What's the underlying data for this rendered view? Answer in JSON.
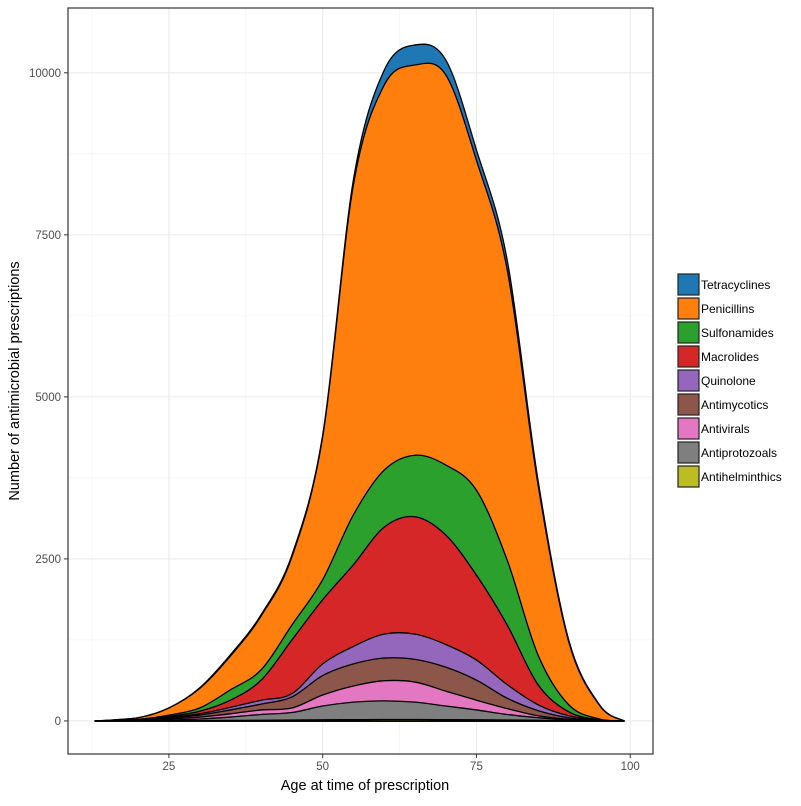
{
  "chart_data": {
    "type": "area",
    "stacked": true,
    "title": "",
    "xlabel": "Age at time of prescription",
    "ylabel": "Number of antimicrobial prescriptions",
    "xlim": [
      8.6,
      103.7
    ],
    "ylim": [
      -510,
      11000
    ],
    "xticks": [
      25,
      50,
      75,
      100
    ],
    "yticks": [
      0,
      2500,
      5000,
      7500,
      10000
    ],
    "grid": true,
    "legend_position": "right",
    "x": [
      13,
      20,
      25,
      30,
      35,
      40,
      45,
      50,
      55,
      60,
      65,
      70,
      75,
      80,
      85,
      90,
      95,
      99
    ],
    "series": [
      {
        "name": "Antihelminthics",
        "color": "#bcbd22",
        "values": [
          0,
          0,
          2,
          5,
          8,
          10,
          15,
          18,
          20,
          22,
          22,
          20,
          18,
          15,
          10,
          5,
          2,
          0
        ]
      },
      {
        "name": "Antiprotozoals",
        "color": "#7f7f7f",
        "values": [
          0,
          5,
          13,
          25,
          52,
          90,
          115,
          212,
          270,
          288,
          268,
          210,
          152,
          85,
          40,
          10,
          1,
          0
        ]
      },
      {
        "name": "Antivirals",
        "color": "#e377c2",
        "values": [
          0,
          5,
          15,
          30,
          50,
          70,
          70,
          170,
          250,
          310,
          310,
          230,
          150,
          90,
          30,
          10,
          2,
          0
        ]
      },
      {
        "name": "Antimycotics",
        "color": "#8c564b",
        "values": [
          0,
          5,
          15,
          30,
          60,
          90,
          170,
          300,
          340,
          350,
          350,
          370,
          310,
          160,
          80,
          25,
          5,
          0
        ]
      },
      {
        "name": "Quinolone",
        "color": "#9467bd",
        "values": [
          0,
          3,
          10,
          20,
          40,
          60,
          50,
          180,
          270,
          370,
          390,
          350,
          310,
          210,
          90,
          30,
          5,
          0
        ]
      },
      {
        "name": "Macrolides",
        "color": "#d62728",
        "values": [
          0,
          2,
          15,
          40,
          110,
          310,
          830,
          990,
          1260,
          1650,
          1810,
          1690,
          1310,
          920,
          310,
          60,
          5,
          0
        ]
      },
      {
        "name": "Sulfonamides",
        "color": "#2ca02c",
        "values": [
          0,
          5,
          20,
          50,
          160,
          160,
          230,
          310,
          770,
          880,
          950,
          1080,
          1310,
          1000,
          460,
          110,
          10,
          0
        ]
      },
      {
        "name": "Penicillins",
        "color": "#ff7f0e",
        "values": [
          0,
          25,
          110,
          300,
          520,
          830,
          1050,
          2200,
          5090,
          5940,
          6020,
          6020,
          5090,
          4480,
          2630,
          970,
          210,
          0
        ]
      },
      {
        "name": "Tetracyclines",
        "color": "#1f77b4",
        "values": [
          0,
          0,
          0,
          10,
          20,
          20,
          30,
          30,
          80,
          230,
          310,
          230,
          160,
          150,
          70,
          30,
          10,
          0
        ]
      }
    ],
    "legend_order": [
      "Tetracyclines",
      "Penicillins",
      "Sulfonamides",
      "Macrolides",
      "Quinolone",
      "Antimycotics",
      "Antivirals",
      "Antiprotozoals",
      "Antihelminthics"
    ]
  }
}
